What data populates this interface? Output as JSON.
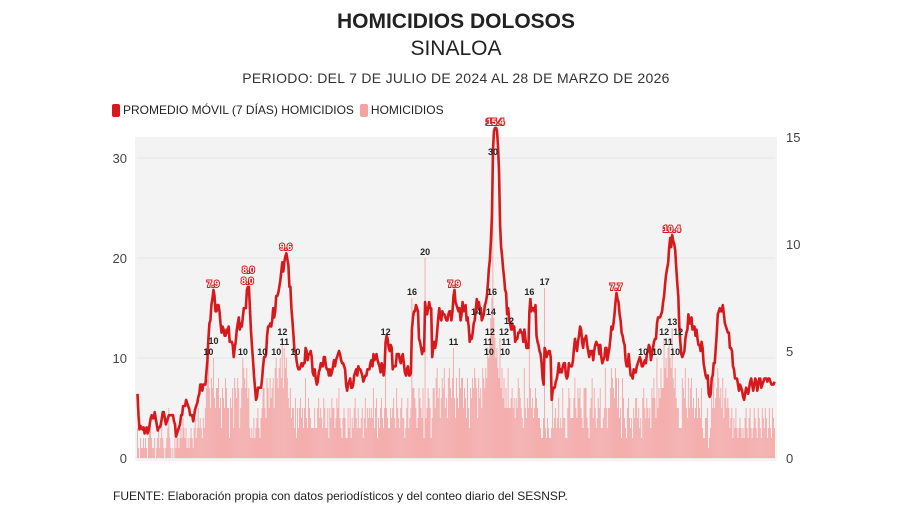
{
  "title": "HOMICIDIOS DOLOSOS",
  "subtitle": "SINALOA",
  "period": "PERIODO: DEL 7 DE JULIO DE 2024 AL 28 DE MARZO DE 2026",
  "legend": [
    {
      "label": "PROMEDIO MÓVIL (7 DÍAS) HOMICIDIOS",
      "color": "#d7191c"
    },
    {
      "label": "HOMICIDIOS",
      "color": "#f4a3a3"
    }
  ],
  "footer": "FUENTE: Elaboración propia con datos periodísticos y del conteo diario del SESNSP.",
  "chart_data": {
    "type": "bar+line",
    "x_start": "2024-07-07",
    "x_end": "2026-03-28",
    "x_step": "day",
    "left_axis": {
      "ylim": [
        0,
        30
      ],
      "ticks": [
        "0",
        "10",
        "20",
        "30"
      ]
    },
    "right_axis": {
      "ylim": [
        0,
        15
      ],
      "ticks": [
        "0",
        "5",
        "10",
        "15"
      ]
    },
    "grid": true,
    "legend_position": "top-left",
    "series": [
      {
        "name": "HOMICIDIOS",
        "type": "bar",
        "axis": "left",
        "color": "#f4a3a3",
        "values": [
          3,
          1,
          0,
          2,
          1,
          1,
          2,
          1,
          2,
          1,
          0,
          2,
          3,
          4,
          2,
          1,
          1,
          2,
          0,
          1,
          2,
          3,
          1,
          2,
          4,
          2,
          1,
          0,
          1,
          2,
          3,
          5,
          2,
          1,
          0,
          1,
          0,
          2,
          1,
          3,
          2,
          1,
          2,
          3,
          2,
          4,
          3,
          2,
          3,
          1,
          2,
          1,
          2,
          3,
          2,
          1,
          3,
          4,
          2,
          3,
          5,
          3,
          4,
          3,
          2,
          4,
          3,
          5,
          7,
          8,
          10,
          7,
          5,
          8,
          7,
          10,
          6,
          5,
          7,
          7,
          8,
          5,
          6,
          3,
          7,
          6,
          5,
          8,
          7,
          5,
          5,
          2,
          6,
          5,
          7,
          3,
          8,
          7,
          6,
          8,
          7,
          3,
          5,
          7,
          10,
          9,
          8,
          7,
          9,
          6,
          7,
          3,
          2,
          3,
          2,
          4,
          2,
          3,
          4,
          5,
          3,
          2,
          4,
          5,
          7,
          7,
          5,
          4,
          8,
          7,
          5,
          8,
          6,
          7,
          8,
          5,
          9,
          10,
          8,
          7,
          9,
          10,
          8,
          12,
          7,
          11,
          9,
          10,
          8,
          6,
          5,
          7,
          4,
          5,
          5,
          3,
          6,
          2,
          5,
          3,
          5,
          6,
          4,
          5,
          3,
          5,
          8,
          4,
          3,
          6,
          5,
          4,
          3,
          3,
          3,
          5,
          3,
          3,
          5,
          6,
          4,
          5,
          4,
          3,
          6,
          5,
          3,
          3,
          5,
          2,
          5,
          4,
          6,
          5,
          5,
          3,
          4,
          6,
          5,
          7,
          4,
          3,
          2,
          4,
          5,
          4,
          2,
          2,
          5,
          3,
          5,
          2,
          4,
          3,
          5,
          6,
          4,
          3,
          5,
          3,
          3,
          4,
          5,
          2,
          4,
          6,
          3,
          5,
          4,
          5,
          4,
          5,
          4,
          7,
          3,
          5,
          6,
          2,
          4,
          3,
          5,
          6,
          4,
          3,
          5,
          12,
          5,
          4,
          3,
          3,
          5,
          4,
          5,
          6,
          4,
          3,
          7,
          5,
          4,
          3,
          5,
          6,
          4,
          4,
          2,
          3,
          5,
          6,
          3,
          4,
          5,
          16,
          7,
          7,
          6,
          5,
          3,
          4,
          7,
          6,
          5,
          4,
          7,
          2,
          20,
          4,
          5,
          7,
          6,
          5,
          2,
          4,
          7,
          7,
          5,
          8,
          9,
          6,
          7,
          4,
          6,
          8,
          7,
          9,
          5,
          6,
          4,
          8,
          9,
          7,
          6,
          8,
          11,
          6,
          4,
          8,
          6,
          5,
          9,
          7,
          8,
          8,
          5,
          7,
          6,
          4,
          8,
          5,
          3,
          7,
          6,
          8,
          7,
          9,
          8,
          7,
          4,
          8,
          6,
          7,
          5,
          9,
          8,
          7,
          9,
          8,
          11,
          10,
          12,
          14,
          16,
          30,
          14,
          12,
          10,
          11,
          9,
          8,
          12,
          7,
          9,
          6,
          8,
          5,
          7,
          5,
          9,
          5,
          5,
          6,
          7,
          5,
          6,
          4,
          6,
          5,
          8,
          7,
          6,
          5,
          4,
          3,
          9,
          5,
          4,
          6,
          5,
          16,
          7,
          5,
          6,
          4,
          5,
          7,
          6,
          5,
          4,
          4,
          3,
          2,
          2,
          4,
          17,
          3,
          2,
          4,
          3,
          2,
          2,
          3,
          6,
          3,
          4,
          5,
          3,
          4,
          6,
          3,
          4,
          3,
          7,
          4,
          4,
          2,
          2,
          5,
          7,
          6,
          4,
          4,
          4,
          6,
          8,
          5,
          4,
          7,
          6,
          7,
          5,
          4,
          3,
          7,
          7,
          7,
          4,
          3,
          2,
          5,
          6,
          8,
          4,
          7,
          5,
          3,
          4,
          6,
          5,
          7,
          3,
          3,
          4,
          5,
          9,
          5,
          3,
          5,
          5,
          7,
          9,
          8,
          7,
          6,
          9,
          8,
          5,
          8,
          4,
          5,
          2,
          8,
          6,
          4,
          3,
          2,
          5,
          6,
          4,
          3,
          4,
          2,
          5,
          4,
          6,
          6,
          4,
          5,
          3,
          4,
          2,
          6,
          7,
          5,
          4,
          6,
          5,
          4,
          5,
          3,
          7,
          6,
          8,
          6,
          4,
          10,
          5,
          7,
          6,
          9,
          7,
          7,
          12,
          9,
          10,
          8,
          11,
          12,
          10,
          9,
          13,
          8,
          7,
          9,
          6,
          5,
          5,
          3,
          3,
          3,
          8,
          7,
          6,
          9,
          5,
          4,
          8,
          5,
          7,
          8,
          5,
          6,
          4,
          5,
          7,
          4,
          6,
          5,
          4,
          7,
          3,
          2,
          2,
          4,
          4,
          5,
          1,
          2,
          3,
          7,
          5,
          8,
          5,
          6,
          7,
          9,
          8,
          6,
          7,
          5,
          8,
          4,
          6,
          7,
          5,
          6,
          5,
          3,
          4,
          5,
          2,
          4,
          3,
          5,
          3,
          2,
          3,
          4,
          3,
          2,
          3,
          2,
          4,
          5,
          3,
          2,
          4,
          5,
          3,
          2,
          3,
          5,
          4,
          3,
          2,
          5,
          4,
          3,
          2,
          5,
          4,
          3,
          5,
          4,
          2,
          3,
          5,
          3,
          2,
          5,
          4,
          3
        ]
      },
      {
        "name": "PROMEDIO MÓVIL (7 DÍAS) HOMICIDIOS",
        "type": "line",
        "axis": "right",
        "color": "#d7191c",
        "window": 7
      }
    ]
  }
}
